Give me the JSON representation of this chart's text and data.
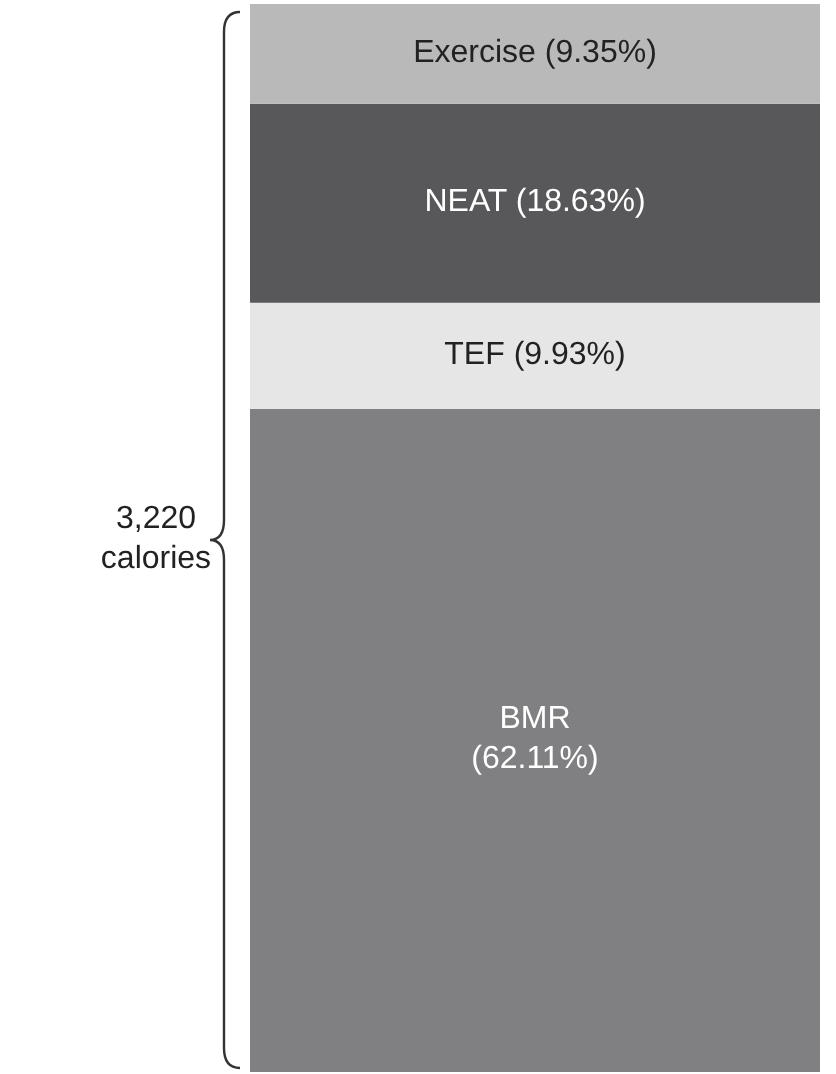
{
  "chart_data": {
    "type": "bar",
    "stacked": true,
    "categories": [
      null
    ],
    "series": [
      {
        "color": "#808083",
        "values": [
          62.11
        ],
        "value_labels": [
          "BMR (62.11%)"
        ]
      },
      {
        "color": "#e6e6e6",
        "values": [
          9.93
        ],
        "value_labels": [
          "TEF (9.93%)"
        ]
      },
      {
        "color": "#58585a",
        "values": [
          18.63
        ],
        "value_labels": [
          "NEAT (18.63%)"
        ]
      },
      {
        "color": "#b9b9b9",
        "values": [
          9.35
        ],
        "value_labels": [
          "Exercise (9.35%)"
        ]
      }
    ],
    "annotations": [
      "3,220 calories"
    ]
  }
}
